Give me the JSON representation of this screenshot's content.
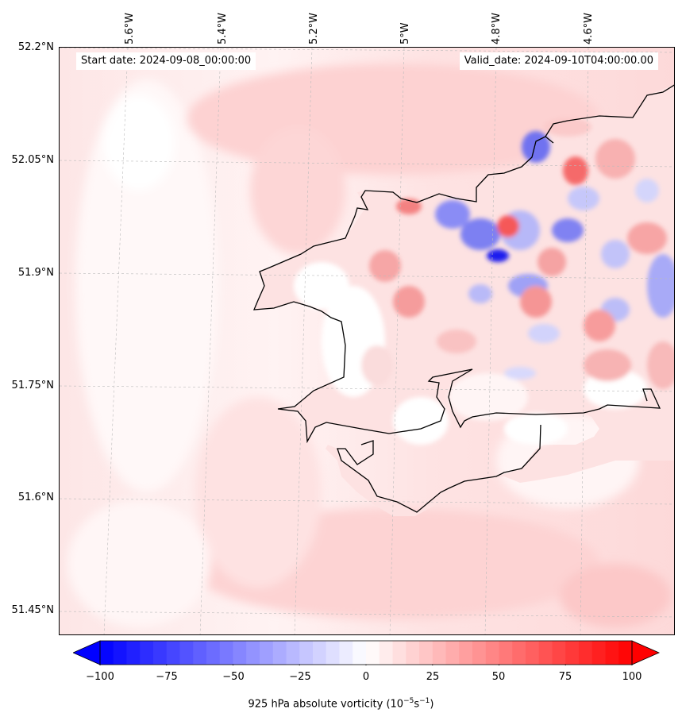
{
  "map": {
    "start_date": "Start date: 2024-09-08_00:00:00",
    "valid_date": "Valid_date: 2024-09-10T04:00:00.00",
    "lat_labels": [
      "52.2°N",
      "52.05°N",
      "51.9°N",
      "51.75°N",
      "51.6°N",
      "51.45°N"
    ],
    "lon_labels": [
      "5.6°W",
      "5.4°W",
      "5.2°W",
      "5°W",
      "4.8°W",
      "4.6°W"
    ],
    "land_fill": "#fde2e2",
    "coast_color": "#000000"
  },
  "colorbar": {
    "ticks": [
      "−100",
      "−75",
      "−50",
      "−25",
      "0",
      "25",
      "50",
      "75",
      "100"
    ],
    "label_prefix": "925 hPa absolute vorticity (10",
    "label_exp1": "−5",
    "label_mid": "s",
    "label_exp2": "−1",
    "label_suffix": ")",
    "min": -100,
    "max": 100,
    "low_color": "#0000ff",
    "high_color": "#ff0000"
  }
}
